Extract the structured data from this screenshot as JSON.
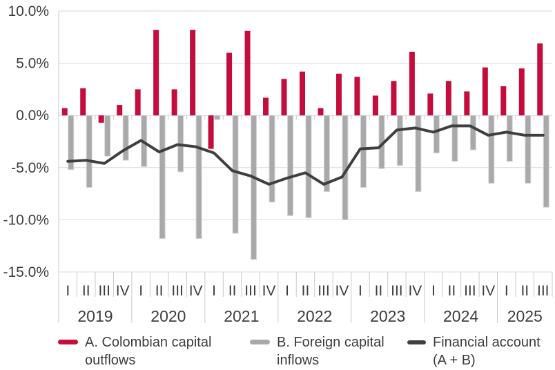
{
  "chart_data": {
    "type": "bar",
    "subtype": "grouped quarterly bars with overlay line",
    "title": "",
    "y_axis": {
      "ticks": [
        "10.0%",
        "5.0%",
        "0.0%",
        "-5.0%",
        "-10.0%",
        "-15.0%"
      ],
      "tick_values": [
        10,
        5,
        0,
        -5,
        -10,
        -15
      ],
      "max": 10,
      "min": -15,
      "unit": "%"
    },
    "x_axis": {
      "years": [
        {
          "label": "2019",
          "quarters": [
            "I",
            "II",
            "III",
            "IV"
          ]
        },
        {
          "label": "2020",
          "quarters": [
            "I",
            "II",
            "III",
            "IV"
          ]
        },
        {
          "label": "2021",
          "quarters": [
            "I",
            "II",
            "III",
            "IV"
          ]
        },
        {
          "label": "2022",
          "quarters": [
            "I",
            "II",
            "III",
            "IV"
          ]
        },
        {
          "label": "2023",
          "quarters": [
            "I",
            "II",
            "III",
            "IV"
          ]
        },
        {
          "label": "2024",
          "quarters": [
            "I",
            "II",
            "III",
            "IV"
          ]
        },
        {
          "label": "2025",
          "quarters": [
            "I",
            "II",
            "III"
          ]
        }
      ]
    },
    "series": [
      {
        "name": "A. Colombian capital outflows",
        "type": "bar",
        "color": "#c40d3d",
        "values": [
          0.7,
          2.6,
          -0.7,
          1.0,
          2.5,
          8.2,
          2.5,
          8.2,
          -3.2,
          6.0,
          8.1,
          1.7,
          3.5,
          4.2,
          0.7,
          4.0,
          3.7,
          1.9,
          3.3,
          6.1,
          2.1,
          3.3,
          2.3,
          4.6,
          2.8,
          4.5,
          6.9
        ]
      },
      {
        "name": "B. Foreign capital inflows",
        "type": "bar",
        "color": "#a9a9a9",
        "values": [
          -5.2,
          -6.9,
          -3.9,
          -4.3,
          -4.9,
          -11.8,
          -5.4,
          -11.8,
          -0.4,
          -11.3,
          -13.8,
          -8.3,
          -9.6,
          -9.8,
          -7.3,
          -10.0,
          -6.9,
          -5.1,
          -4.8,
          -7.3,
          -3.6,
          -4.4,
          -3.3,
          -6.5,
          -4.4,
          -6.5,
          -8.8
        ]
      },
      {
        "name": "Financial account (A + B)",
        "type": "line",
        "color": "#3f3f3f",
        "values": [
          -4.4,
          -4.3,
          -4.6,
          -3.4,
          -2.4,
          -3.5,
          -2.8,
          -3.0,
          -3.6,
          -5.3,
          -5.8,
          -6.6,
          -6.0,
          -5.5,
          -6.6,
          -5.9,
          -3.2,
          -3.1,
          -1.4,
          -1.2,
          -1.6,
          -1.0,
          -1.0,
          -1.9,
          -1.6,
          -1.9,
          -1.9
        ]
      }
    ],
    "grid": true,
    "legend_position": "bottom",
    "colors": {
      "grid": "#d9d9d9",
      "axis": "#c9c9c9",
      "text": "#3d3d3d",
      "bar_outline": "#d6d6d6"
    }
  },
  "legend": {
    "items": [
      {
        "label": "A. Colombian capital\noutflows",
        "color": "#c40d3d"
      },
      {
        "label": "B. Foreign capital\ninflows",
        "color": "#a9a9a9"
      },
      {
        "label": "Financial account\n(A + B)",
        "color": "#3f3f3f"
      }
    ]
  }
}
